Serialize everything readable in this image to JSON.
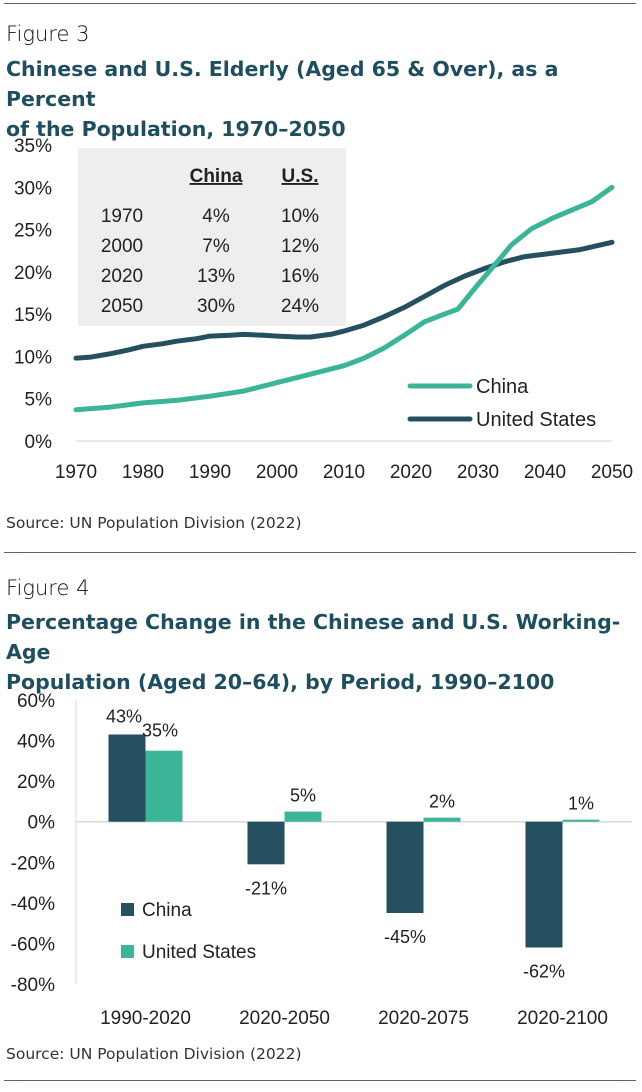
{
  "colors": {
    "china": "#3cb497",
    "us": "#25505f",
    "title": "#1f4e5f",
    "axis": "#d0d0d0"
  },
  "figure3": {
    "label": "Figure 3",
    "title_line1": "Chinese and U.S. Elderly (Aged 65 & Over), as a Percent",
    "title_line2": "of the Population, 1970–2050",
    "source": "Source: UN Population Division (2022)"
  },
  "figure4": {
    "label": "Figure 4",
    "title_line1": "Percentage Change in the Chinese and U.S. Working-Age",
    "title_line2": "Population (Aged 20–64), by Period, 1990–2100",
    "source": "Source: UN Population Division (2022)"
  },
  "chart_data": [
    {
      "type": "line",
      "y_tick_labels": [
        "0%",
        "5%",
        "10%",
        "15%",
        "20%",
        "25%",
        "30%",
        "35%"
      ],
      "x_tick_labels": [
        "1970",
        "1980",
        "1990",
        "2000",
        "2010",
        "2020",
        "2030",
        "2040",
        "2050"
      ],
      "ylim": [
        0,
        35
      ],
      "xlim": [
        1970,
        2050
      ],
      "legend_position": "bottom-right",
      "series": [
        {
          "name": "China",
          "color": "#3cb497",
          "x": [
            1970,
            1975,
            1980,
            1985,
            1990,
            1995,
            2000,
            2005,
            2010,
            2013,
            2016,
            2019,
            2022,
            2025,
            2027,
            2030,
            2033,
            2035,
            2038,
            2041,
            2044,
            2047,
            2050
          ],
          "y": [
            3.7,
            4.0,
            4.5,
            4.8,
            5.3,
            5.9,
            6.9,
            7.9,
            8.9,
            9.8,
            11.0,
            12.5,
            14.1,
            15.0,
            15.6,
            18.5,
            21.3,
            23.2,
            25.1,
            26.3,
            27.3,
            28.3,
            30.0
          ]
        },
        {
          "name": "United States",
          "color": "#25505f",
          "x": [
            1970,
            1972,
            1975,
            1978,
            1980,
            1983,
            1985,
            1988,
            1990,
            1993,
            1995,
            1998,
            2000,
            2003,
            2005,
            2008,
            2010,
            2013,
            2016,
            2019,
            2022,
            2025,
            2028,
            2031,
            2034,
            2037,
            2040,
            2045,
            2050
          ],
          "y": [
            9.8,
            9.9,
            10.3,
            10.8,
            11.2,
            11.5,
            11.8,
            12.1,
            12.4,
            12.5,
            12.6,
            12.5,
            12.4,
            12.3,
            12.3,
            12.6,
            13.0,
            13.7,
            14.7,
            15.8,
            17.1,
            18.4,
            19.5,
            20.4,
            21.2,
            21.8,
            22.1,
            22.6,
            23.5
          ]
        }
      ],
      "inset_table": {
        "headers": [
          "",
          "China",
          "U.S."
        ],
        "rows": [
          [
            "1970",
            "4%",
            "10%"
          ],
          [
            "2000",
            "7%",
            "12%"
          ],
          [
            "2020",
            "13%",
            "16%"
          ],
          [
            "2050",
            "30%",
            "24%"
          ]
        ]
      }
    },
    {
      "type": "bar",
      "categories": [
        "1990-2020",
        "2020-2050",
        "2020-2075",
        "2020-2100"
      ],
      "y_tick_labels": [
        "-80%",
        "-60%",
        "-40%",
        "-20%",
        "0%",
        "20%",
        "40%",
        "60%"
      ],
      "ylim": [
        -80,
        60
      ],
      "legend_position": "bottom-left",
      "series": [
        {
          "name": "China",
          "color": "#25505f",
          "values": [
            43,
            -21,
            -45,
            -62
          ],
          "labels": [
            "43%",
            "-21%",
            "-45%",
            "-62%"
          ]
        },
        {
          "name": "United States",
          "color": "#3cb497",
          "values": [
            35,
            5,
            2,
            1
          ],
          "labels": [
            "35%",
            "5%",
            "2%",
            "1%"
          ]
        }
      ]
    }
  ]
}
